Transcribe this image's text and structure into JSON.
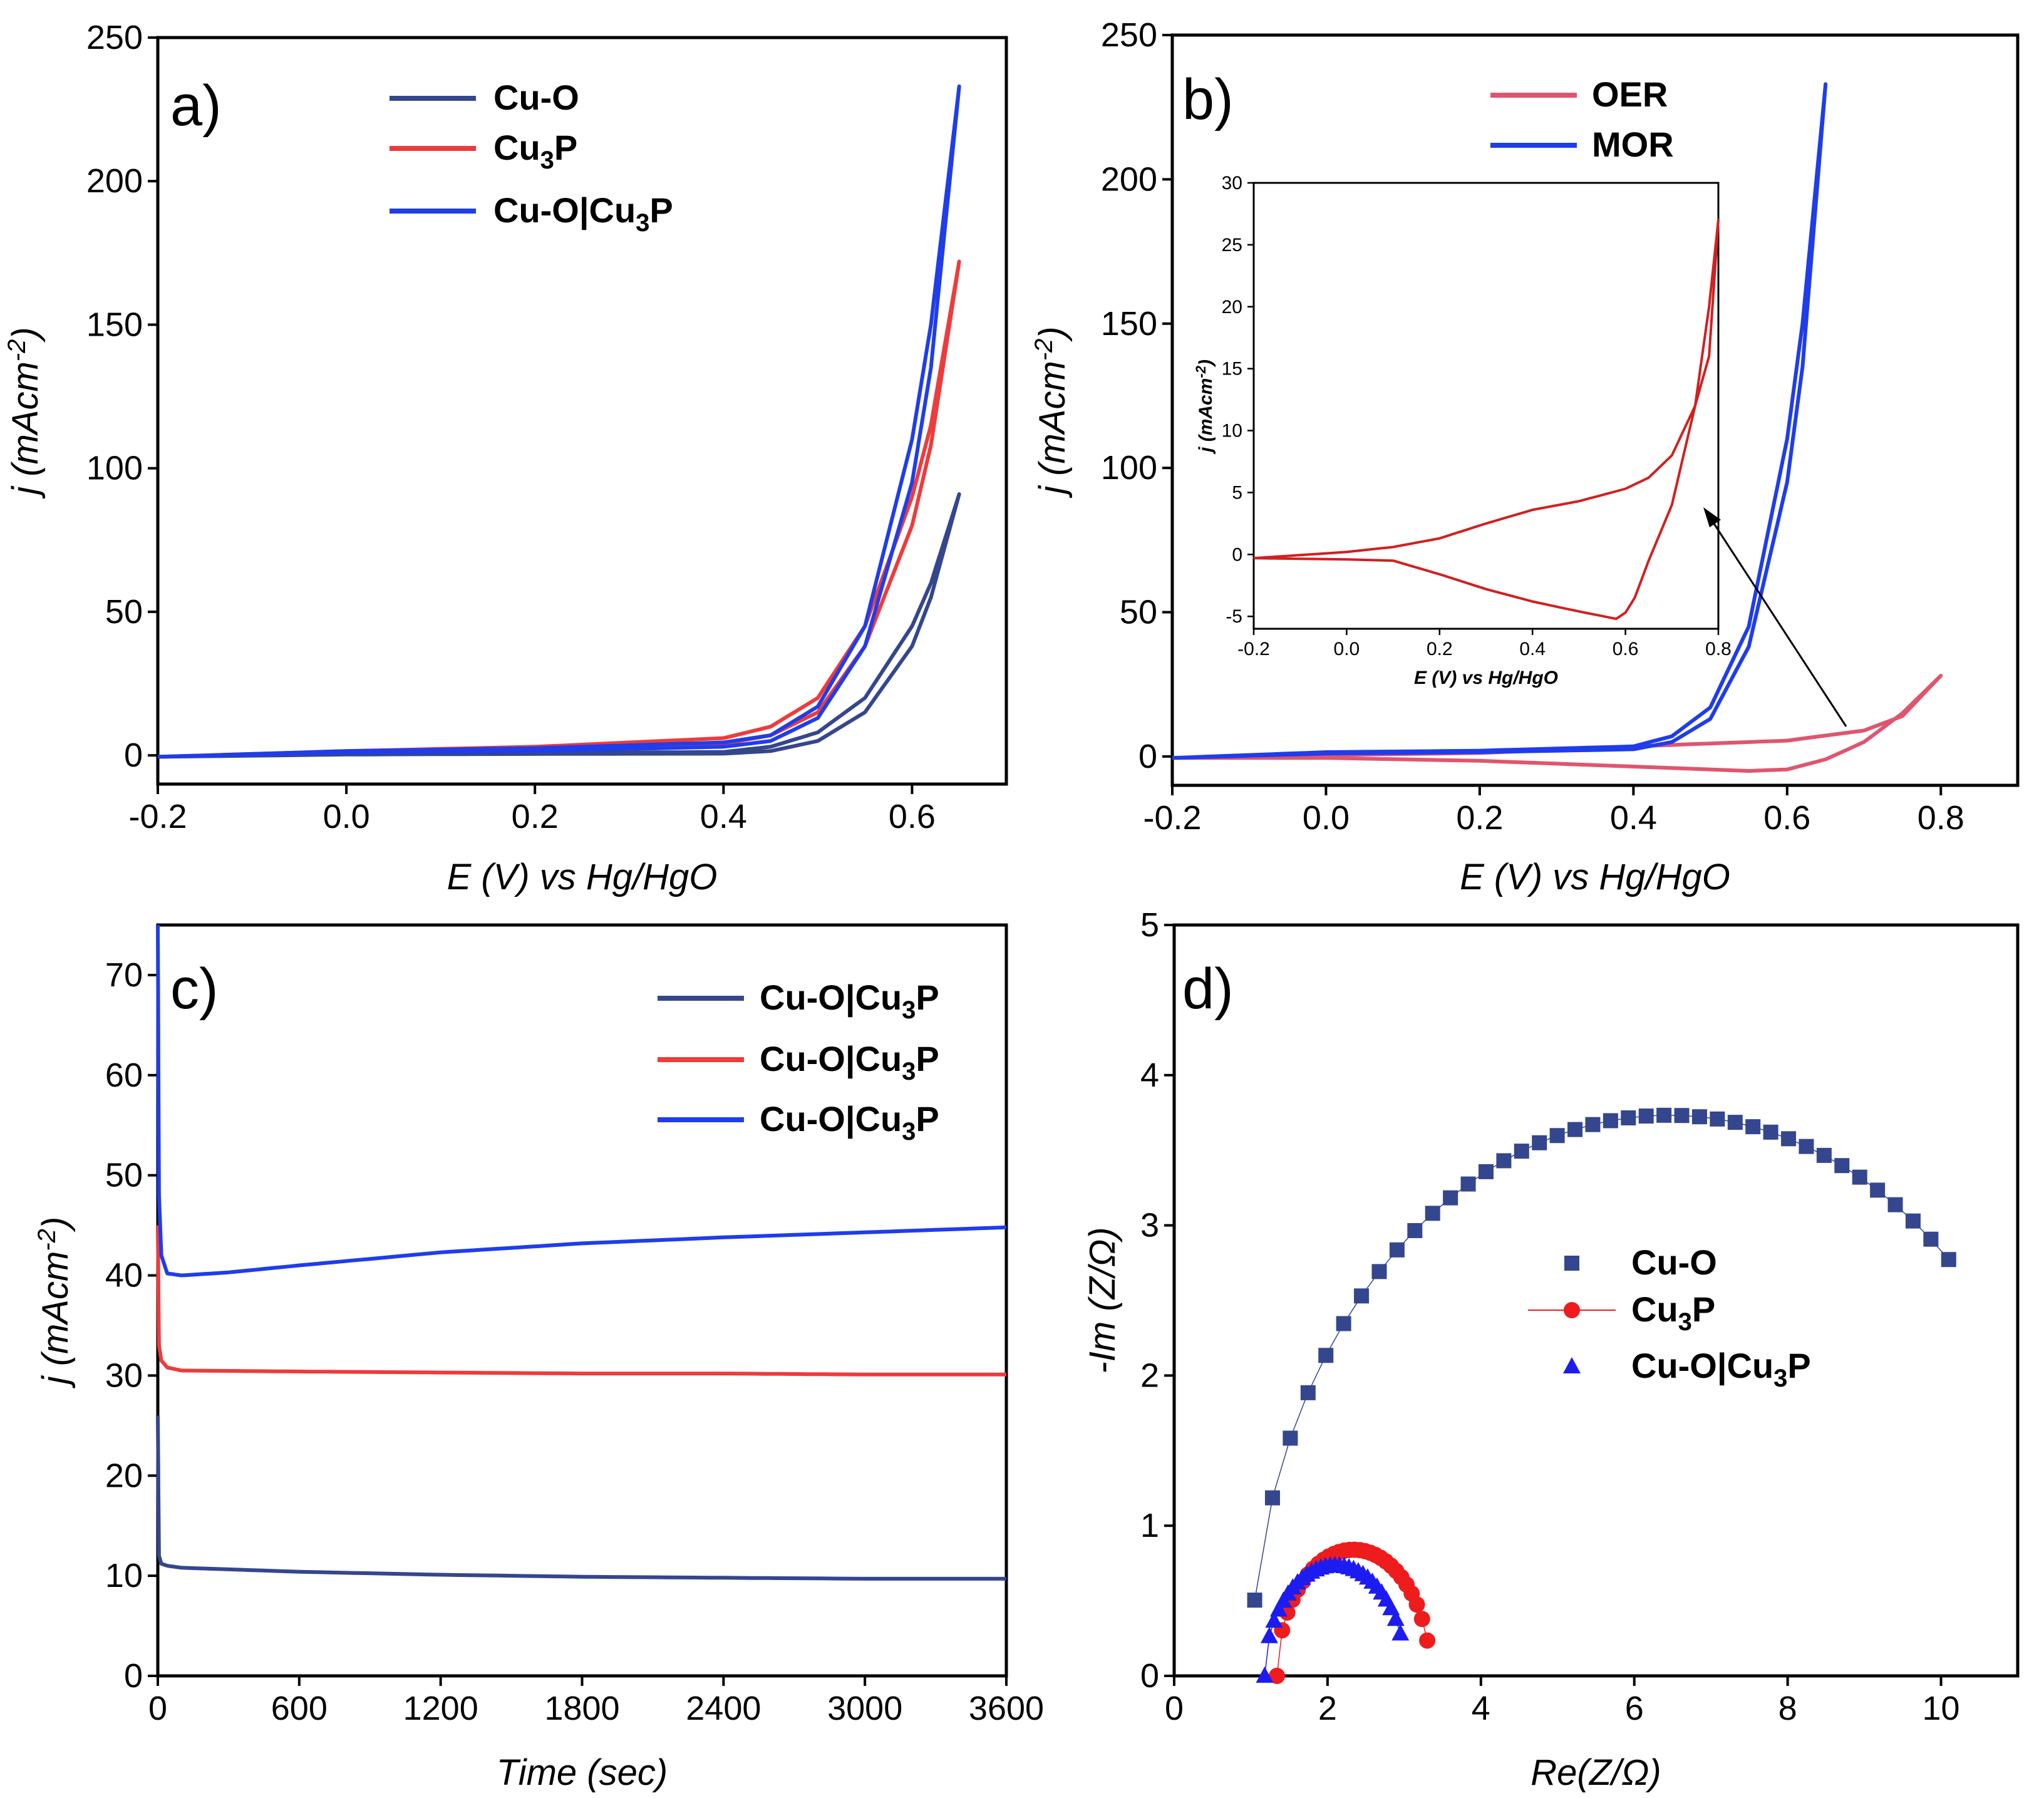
{
  "chart_data": [
    {
      "panel": "a)",
      "type": "line",
      "xlabel": "E (V) vs Hg/HgO",
      "ylabel": "j (mAcm-2)",
      "ylabel_base": "j (mAcm",
      "ylabel_sup": "-2",
      "ylabel_close": ")",
      "xlim": [
        -0.2,
        0.7
      ],
      "ylim": [
        -10,
        250
      ],
      "xticks": [
        -0.2,
        0.0,
        0.2,
        0.4,
        0.6
      ],
      "xtick_labels": [
        "-0.2",
        "0.0",
        "0.2",
        "0.4",
        "0.6"
      ],
      "yticks": [
        0,
        50,
        100,
        150,
        200,
        250
      ],
      "ytick_labels": [
        "0",
        "50",
        "100",
        "150",
        "200",
        "250"
      ],
      "legend_position": "top-center",
      "series": [
        {
          "name": "Cu-O",
          "legend": {
            "base": "Cu-O",
            "sub": "",
            "tail": ""
          },
          "color": "#34468d",
          "x": [
            -0.2,
            0.0,
            0.2,
            0.4,
            0.45,
            0.5,
            0.55,
            0.6,
            0.62,
            0.65
          ],
          "y": [
            -0.5,
            0.5,
            0.8,
            1.2,
            3,
            8,
            20,
            45,
            60,
            91
          ],
          "y_return": [
            -0.5,
            0.3,
            0.5,
            0.6,
            1.5,
            5,
            15,
            38,
            55,
            91
          ]
        },
        {
          "name": "Cu3P",
          "legend": {
            "base": "Cu",
            "sub": "3",
            "tail": "P"
          },
          "color": "#ee3b3b",
          "x": [
            -0.2,
            0.0,
            0.2,
            0.4,
            0.45,
            0.5,
            0.55,
            0.6,
            0.62,
            0.65
          ],
          "y": [
            -0.5,
            1.5,
            3,
            6,
            10,
            20,
            45,
            90,
            115,
            172
          ],
          "y_return": [
            -0.5,
            1.0,
            2,
            4,
            7,
            15,
            38,
            80,
            108,
            172
          ]
        },
        {
          "name": "Cu-O|Cu3P",
          "legend": {
            "base": "Cu-O|Cu",
            "sub": "3",
            "tail": "P"
          },
          "color": "#1f3dea",
          "x": [
            -0.2,
            0.0,
            0.2,
            0.4,
            0.45,
            0.5,
            0.55,
            0.6,
            0.62,
            0.65
          ],
          "y": [
            -0.5,
            1.5,
            2.5,
            4.5,
            7,
            17,
            45,
            110,
            150,
            233
          ],
          "y_return": [
            -0.5,
            1.0,
            1.5,
            3,
            5,
            13,
            38,
            95,
            135,
            233
          ]
        }
      ]
    },
    {
      "panel": "b)",
      "type": "line",
      "xlabel": "E (V) vs Hg/HgO",
      "ylabel": "j (mAcm-2)",
      "ylabel_base": "j (mAcm",
      "ylabel_sup": "-2",
      "ylabel_close": ")",
      "xlim": [
        -0.2,
        0.9
      ],
      "ylim": [
        -10,
        250
      ],
      "xticks": [
        -0.2,
        0.0,
        0.2,
        0.4,
        0.6,
        0.8
      ],
      "xtick_labels": [
        "-0.2",
        "0.0",
        "0.2",
        "0.4",
        "0.6",
        "0.8"
      ],
      "yticks": [
        0,
        50,
        100,
        150,
        200,
        250
      ],
      "ytick_labels": [
        "0",
        "50",
        "100",
        "150",
        "200",
        "250"
      ],
      "legend_position": "top-center",
      "series": [
        {
          "name": "OER",
          "legend": {
            "base": "OER",
            "sub": "",
            "tail": ""
          },
          "color": "#e0556e",
          "x_forward": [
            -0.2,
            0.0,
            0.2,
            0.4,
            0.5,
            0.6,
            0.7,
            0.75,
            0.8
          ],
          "y_forward": [
            -0.5,
            0.5,
            1.2,
            3.5,
            4.5,
            5.5,
            9,
            14,
            28
          ],
          "x_return": [
            0.8,
            0.75,
            0.7,
            0.65,
            0.6,
            0.55,
            0.4,
            0.2,
            0.0,
            -0.2
          ],
          "y_return": [
            28,
            15,
            5,
            -1,
            -4.5,
            -5,
            -3.5,
            -1.5,
            -0.5,
            -0.5
          ]
        },
        {
          "name": "MOR",
          "legend": {
            "base": "MOR",
            "sub": "",
            "tail": ""
          },
          "color": "#1f3dea",
          "x": [
            -0.2,
            0.0,
            0.2,
            0.4,
            0.45,
            0.5,
            0.55,
            0.6,
            0.62,
            0.65
          ],
          "y": [
            -0.5,
            1.5,
            2,
            3.5,
            7,
            17,
            45,
            110,
            150,
            233
          ],
          "y_return": [
            -0.5,
            1.0,
            1.5,
            2.5,
            5,
            13,
            38,
            95,
            135,
            233
          ]
        }
      ],
      "inset": {
        "xlabel": "E (V) vs Hg/HgO",
        "ylabel": "j (mAcm-2)",
        "ylabel_base": "j (mAcm",
        "ylabel_sup": "-2",
        "ylabel_close": ")",
        "xlim": [
          -0.2,
          0.8
        ],
        "ylim": [
          -6,
          30
        ],
        "xticks": [
          -0.2,
          0.0,
          0.2,
          0.4,
          0.6,
          0.8
        ],
        "xtick_labels": [
          "-0.2",
          "0.0",
          "0.2",
          "0.4",
          "0.6",
          "0.8"
        ],
        "yticks": [
          -5,
          0,
          5,
          10,
          15,
          20,
          25,
          30
        ],
        "ytick_labels": [
          "-5",
          "0",
          "5",
          "10",
          "15",
          "20",
          "25",
          "30"
        ],
        "color": "#d21f1f",
        "x_forward": [
          -0.2,
          0.0,
          0.1,
          0.2,
          0.3,
          0.4,
          0.5,
          0.6,
          0.65,
          0.7,
          0.75,
          0.78,
          0.8
        ],
        "y_forward": [
          -0.3,
          0.2,
          0.6,
          1.3,
          2.5,
          3.6,
          4.3,
          5.3,
          6.2,
          8,
          12,
          16,
          27
        ],
        "x_return": [
          0.8,
          0.78,
          0.75,
          0.7,
          0.65,
          0.62,
          0.6,
          0.58,
          0.5,
          0.4,
          0.3,
          0.2,
          0.1,
          0.0,
          -0.2
        ],
        "y_return": [
          27,
          20,
          12,
          4,
          -0.5,
          -3.5,
          -4.7,
          -5.2,
          -4.6,
          -3.8,
          -2.8,
          -1.6,
          -0.5,
          -0.4,
          -0.3
        ]
      }
    },
    {
      "panel": "c)",
      "type": "line",
      "xlabel": "Time (sec)",
      "ylabel": "j (mAcm-2)",
      "ylabel_base": "j (mAcm",
      "ylabel_sup": "-2",
      "ylabel_close": ")",
      "xlim": [
        0,
        3600
      ],
      "ylim": [
        0,
        75
      ],
      "xticks": [
        0,
        600,
        1200,
        1800,
        2400,
        3000,
        3600
      ],
      "xtick_labels": [
        "0",
        "600",
        "1200",
        "1800",
        "2400",
        "3000",
        "3600"
      ],
      "yticks": [
        0,
        10,
        20,
        30,
        40,
        50,
        60,
        70
      ],
      "ytick_labels": [
        "0",
        "10",
        "20",
        "30",
        "40",
        "50",
        "60",
        "70"
      ],
      "legend_position": "top-right",
      "series": [
        {
          "name": "Cu-O|Cu3P",
          "legend": {
            "base": "Cu-O|Cu",
            "sub": "3",
            "tail": "P"
          },
          "color": "#34468d",
          "x": [
            0,
            5,
            15,
            40,
            100,
            600,
            1200,
            1800,
            2400,
            3000,
            3600
          ],
          "y": [
            26,
            12,
            11.2,
            11,
            10.8,
            10.4,
            10.1,
            9.9,
            9.8,
            9.7,
            9.7
          ]
        },
        {
          "name": "Cu-O|Cu3P",
          "legend": {
            "base": "Cu-O|Cu",
            "sub": "3",
            "tail": "P"
          },
          "color": "#ee3b3b",
          "x": [
            0,
            5,
            15,
            40,
            100,
            600,
            1200,
            1800,
            2400,
            3000,
            3600
          ],
          "y": [
            45,
            33,
            31.5,
            30.8,
            30.5,
            30.4,
            30.3,
            30.2,
            30.2,
            30.1,
            30.1
          ]
        },
        {
          "name": "Cu-O|Cu3P",
          "legend": {
            "base": "Cu-O|Cu",
            "sub": "3",
            "tail": "P"
          },
          "color": "#1f3dea",
          "x": [
            0,
            5,
            15,
            40,
            100,
            300,
            600,
            1200,
            1800,
            2400,
            3000,
            3600
          ],
          "y": [
            75,
            48,
            42,
            40.2,
            40,
            40.3,
            41,
            42.3,
            43.2,
            43.8,
            44.3,
            44.8
          ]
        }
      ]
    },
    {
      "panel": "d)",
      "type": "scatter",
      "xlabel": "Re(Z/Ω)",
      "ylabel": "-Im (Z/Ω)",
      "xlim": [
        0,
        11
      ],
      "ylim": [
        0,
        5
      ],
      "xticks": [
        0,
        2,
        4,
        6,
        8,
        10
      ],
      "xtick_labels": [
        "0",
        "2",
        "4",
        "6",
        "8",
        "10"
      ],
      "yticks": [
        0,
        1,
        2,
        3,
        4,
        5
      ],
      "ytick_labels": [
        "0",
        "1",
        "2",
        "3",
        "4",
        "5"
      ],
      "legend_position": "center",
      "series": [
        {
          "name": "Cu-O",
          "legend": {
            "base": "Cu-O",
            "sub": "",
            "tail": ""
          },
          "marker": "square",
          "color": "#34468d",
          "center": 6.45,
          "radius": 5.45,
          "y_scale": 0.685,
          "x_start": 1.05,
          "x_end": 10.1,
          "n_points": 40
        },
        {
          "name": "Cu3P",
          "legend": {
            "base": "Cu",
            "sub": "3",
            "tail": "P"
          },
          "marker": "circle",
          "color": "#ee1c1c",
          "center": 2.34,
          "radius": 1.0,
          "y_scale": 0.84,
          "x_start": 1.34,
          "x_end": 3.3,
          "n_points": 30
        },
        {
          "name": "Cu-O|Cu3P",
          "legend": {
            "base": "Cu-O|Cu",
            "sub": "3",
            "tail": "P"
          },
          "marker": "triangle",
          "color": "#1c1cf0",
          "center": 2.1,
          "radius": 0.92,
          "y_scale": 0.8,
          "x_start": 1.18,
          "x_end": 2.95,
          "n_points": 30
        }
      ]
    }
  ]
}
